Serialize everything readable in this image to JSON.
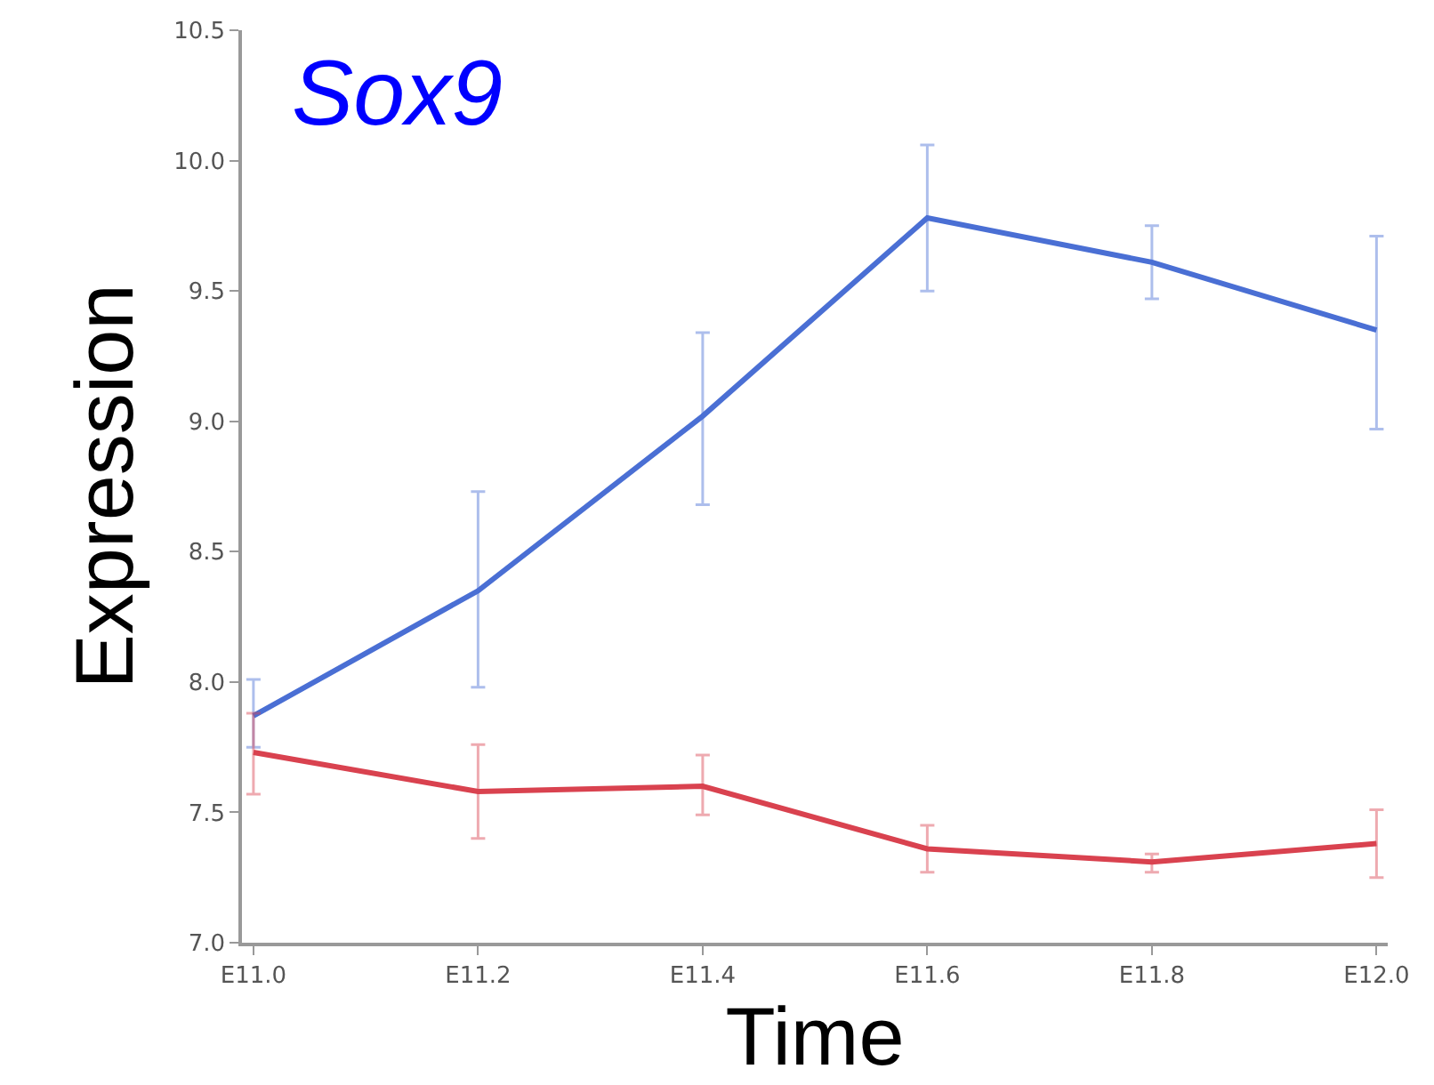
{
  "chart_data": {
    "type": "line",
    "xlabel": "Time",
    "ylabel": "Expression",
    "annotations": [
      "Sox9"
    ],
    "categories": [
      "E11.0",
      "E11.2",
      "E11.4",
      "E11.6",
      "E11.8",
      "E12.0"
    ],
    "series": [
      {
        "color": "#4a6fd4",
        "values": [
          7.87,
          8.35,
          9.02,
          9.78,
          9.61,
          9.35
        ],
        "errors": [
          [
            7.75,
            8.01
          ],
          [
            7.98,
            8.73
          ],
          [
            8.68,
            9.34
          ],
          [
            9.5,
            10.06
          ],
          [
            9.47,
            9.75
          ],
          [
            8.97,
            9.71
          ]
        ]
      },
      {
        "color": "#d9424f",
        "values": [
          7.73,
          7.58,
          7.6,
          7.36,
          7.31,
          7.38
        ],
        "errors": [
          [
            7.57,
            7.88
          ],
          [
            7.4,
            7.76
          ],
          [
            7.49,
            7.72
          ],
          [
            7.27,
            7.45
          ],
          [
            7.27,
            7.34
          ],
          [
            7.25,
            7.51
          ]
        ]
      }
    ],
    "ylim": [
      7.0,
      10.5
    ],
    "yticks": [
      {
        "value": 7.0,
        "label": "7.0"
      },
      {
        "value": 7.5,
        "label": "7.5"
      },
      {
        "value": 8.0,
        "label": "8.0"
      },
      {
        "value": 8.5,
        "label": "8.5"
      },
      {
        "value": 9.0,
        "label": "9.0"
      },
      {
        "value": 9.5,
        "label": "9.5"
      },
      {
        "value": 10.0,
        "label": "10.0"
      },
      {
        "value": 10.5,
        "label": "10.5"
      }
    ],
    "marker": "none",
    "line_style": "solid"
  }
}
